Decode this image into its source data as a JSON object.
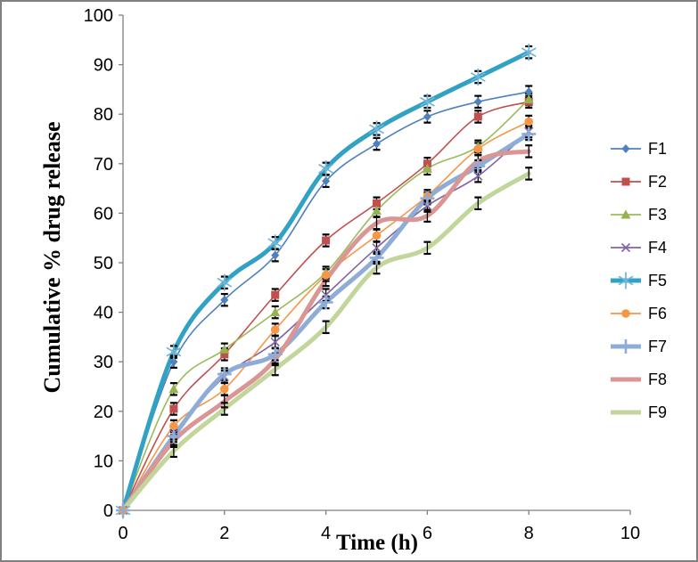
{
  "window": {
    "background": "#ffffff",
    "border_color": "#808080"
  },
  "chart_data": {
    "type": "line",
    "title": "",
    "xlabel": "Time (h)",
    "ylabel": "Cumulative % drug release",
    "xlim": [
      0,
      10
    ],
    "ylim": [
      0,
      100
    ],
    "xticks": [
      0,
      2,
      4,
      6,
      8,
      10
    ],
    "yticks": [
      0,
      10,
      20,
      30,
      40,
      50,
      60,
      70,
      80,
      90,
      100
    ],
    "grid": false,
    "legend_position": "right",
    "error_bar_halfwidth": 1.2,
    "x": [
      0,
      1,
      2,
      3,
      4,
      5,
      6,
      7,
      8
    ],
    "series": [
      {
        "name": "F1",
        "color": "#4F81BD",
        "marker": "diamond",
        "marker_color": "#4F81BD",
        "thick": false,
        "values": [
          0,
          30,
          42.5,
          51.5,
          66.5,
          74,
          79.5,
          82.5,
          84.5
        ]
      },
      {
        "name": "F2",
        "color": "#C0504D",
        "marker": "square",
        "marker_color": "#C0504D",
        "thick": false,
        "values": [
          0,
          20.5,
          31.5,
          43.5,
          54.5,
          62,
          70,
          79.5,
          82.5
        ]
      },
      {
        "name": "F3",
        "color": "#9BBB59",
        "marker": "triangle",
        "marker_color": "#94B24D",
        "thick": false,
        "values": [
          0,
          24.5,
          32.5,
          40,
          48,
          60.5,
          69,
          73.5,
          83
        ]
      },
      {
        "name": "F4",
        "color": "#8064A2",
        "marker": "x",
        "marker_color": "#8064A2",
        "thick": false,
        "values": [
          0,
          15.5,
          27,
          34,
          43.5,
          53,
          61.5,
          67.5,
          76.5
        ]
      },
      {
        "name": "F5",
        "color": "#31A2C4",
        "marker": "asterisk",
        "marker_color": "#6FB6D8",
        "thick": true,
        "values": [
          0,
          32,
          46,
          54,
          69,
          77,
          82.5,
          87.5,
          92.5
        ]
      },
      {
        "name": "F6",
        "color": "#F79646",
        "marker": "circle",
        "marker_color": "#F79646",
        "thick": false,
        "values": [
          0,
          17,
          24.5,
          36.5,
          47.5,
          55.5,
          63.5,
          73,
          78.5
        ]
      },
      {
        "name": "F7",
        "color": "#8EACD8",
        "marker": "plus",
        "marker_color": "#8EACD8",
        "thick": true,
        "values": [
          0,
          15,
          27.5,
          31.5,
          42,
          51,
          63,
          69.5,
          76
        ]
      },
      {
        "name": "F8",
        "color": "#D99694",
        "marker": "none",
        "marker_color": "#D99694",
        "thick": true,
        "values": [
          0,
          14,
          22,
          30.5,
          46.5,
          58,
          59.5,
          70.5,
          72.5
        ]
      },
      {
        "name": "F9",
        "color": "#C2D69B",
        "marker": "none",
        "marker_color": "#C2D69B",
        "thick": true,
        "values": [
          0,
          12,
          20.5,
          28.5,
          37,
          49,
          53,
          62,
          68
        ]
      }
    ]
  }
}
